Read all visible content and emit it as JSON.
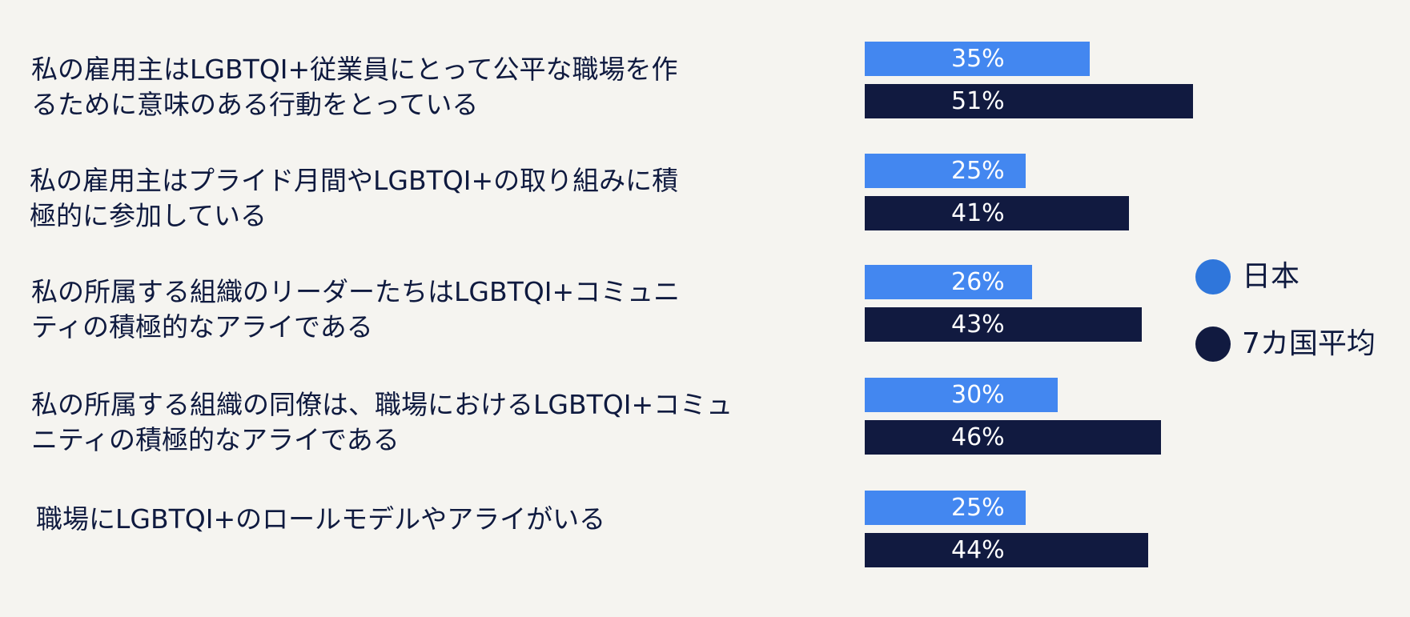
{
  "colors": {
    "japan": "#4387f0",
    "average": "#111a40",
    "text": "#0f1a3f",
    "background": "#f5f4f0"
  },
  "chart_data": {
    "type": "bar",
    "orientation": "horizontal",
    "categories": [
      [
        "私の雇用主はLGBTQI+従業員にとって公平な職場を作",
        "るために意味のある行動をとっている"
      ],
      [
        "私の雇用主はプライド月間やLGBTQI+の取り組みに積",
        "極的に参加している"
      ],
      [
        "私の所属する組織のリーダーたちはLGBTQI+コミュニ",
        "ティの積極的なアライである"
      ],
      [
        "私の所属する組織の同僚は、職場におけるLGBTQI+コミュ",
        "ニティの積極的なアライである"
      ],
      [
        "職場にLGBTQI+のロールモデルやアライがいる"
      ]
    ],
    "series": [
      {
        "name": "日本",
        "values": [
          35,
          25,
          26,
          30,
          25
        ],
        "labels": [
          "35%",
          "25%",
          "26%",
          "30%",
          "25%"
        ]
      },
      {
        "name": "7カ国平均",
        "values": [
          51,
          41,
          43,
          46,
          44
        ],
        "labels": [
          "51%",
          "41%",
          "43%",
          "46%",
          "44%"
        ]
      }
    ],
    "xlim": [
      0,
      100
    ],
    "legend_position": "right"
  }
}
